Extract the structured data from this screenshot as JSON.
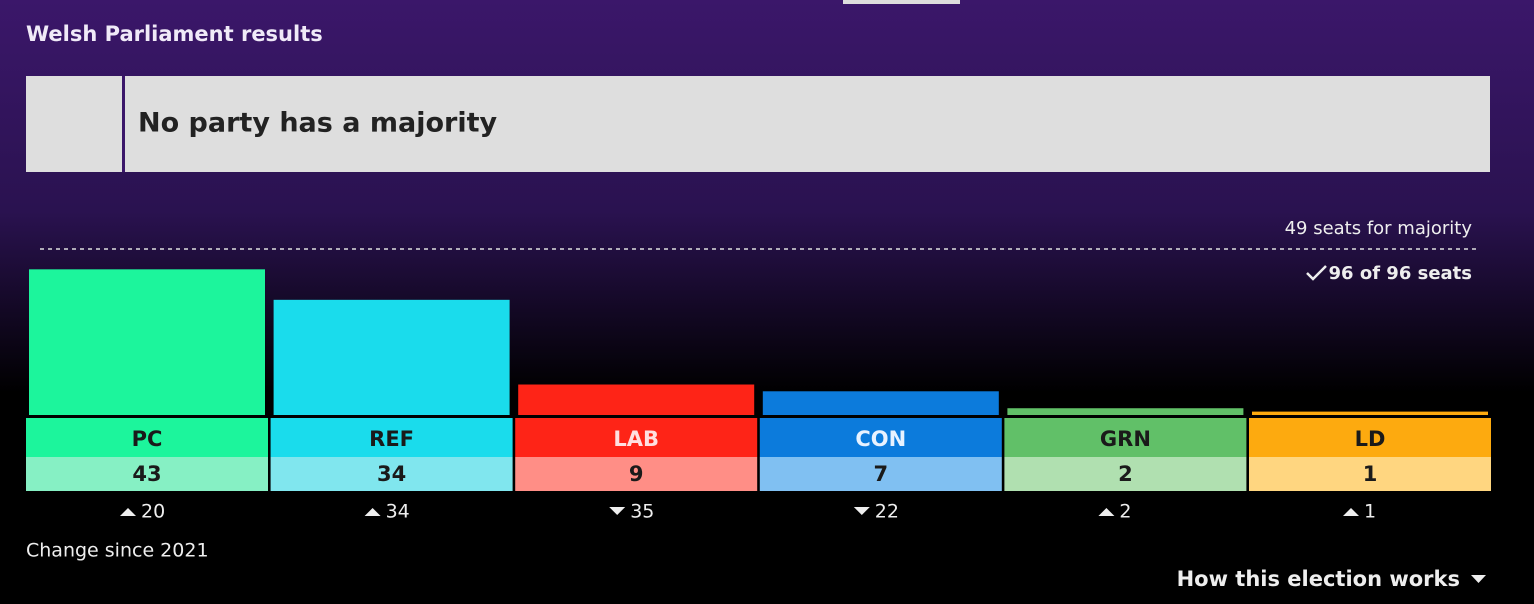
{
  "chart_data": {
    "type": "bar",
    "title": "Welsh Parliament results",
    "status": "No party has a majority",
    "majority": {
      "value": 49,
      "label": "49 seats for majority"
    },
    "declared": "96 of 96 seats",
    "categories": [
      "PC",
      "REF",
      "LAB",
      "CON",
      "GRN",
      "LD"
    ],
    "values": [
      43,
      34,
      9,
      7,
      2,
      1
    ],
    "change_label": "Change since 2021",
    "change": [
      20,
      34,
      35,
      22,
      2,
      1
    ],
    "change_direction": [
      "up",
      "up",
      "down",
      "down",
      "up",
      "up"
    ],
    "colors": [
      "#1cf59c",
      "#1adcec",
      "#fe2417",
      "#0c7bdc",
      "#61c068",
      "#fdaa0f"
    ],
    "light_colors": [
      "#86f0c4",
      "#80e6ee",
      "#ff8e86",
      "#80c0f2",
      "#b0e0b0",
      "#ffd680"
    ],
    "label_colors": [
      "#1a1a1a",
      "#1a1a1a",
      "#ffe0e0",
      "#e8f2ff",
      "#1a1a1a",
      "#1a1a1a"
    ],
    "footer": "How this election works"
  }
}
